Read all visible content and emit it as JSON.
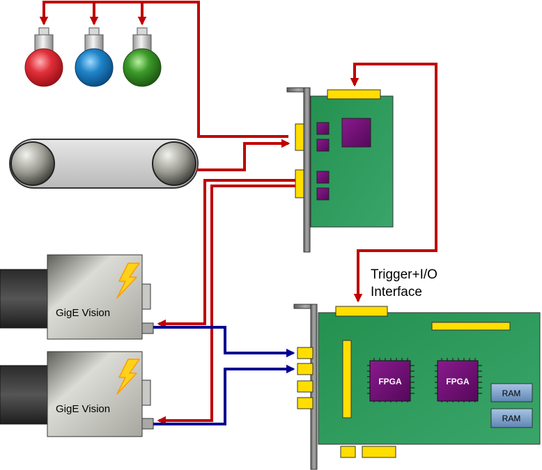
{
  "labels": {
    "trigger_line1": "Trigger+I/O",
    "trigger_line2": "Interface",
    "camera_top": "GigE Vision",
    "camera_bottom": "GigE Vision",
    "fpga_left": "FPGA",
    "fpga_right": "FPGA",
    "ram_top": "RAM",
    "ram_bottom": "RAM"
  },
  "colors": {
    "signal_red": "#c00000",
    "signal_blue": "#000090",
    "board_green": "#2e9a5c",
    "connector_yellow": "#ffde00",
    "chip_purple": "#6a0a6e",
    "bracket_gray": "#7f7f7f",
    "lamp_red": "#e0303a",
    "lamp_blue": "#1f84c8",
    "lamp_green": "#3c9a2a",
    "ram_blue": "#7ea6cf"
  },
  "icons": {
    "lamps": [
      "red-lamp-icon",
      "blue-lamp-icon",
      "green-lamp-icon"
    ],
    "conveyor": "conveyor-belt-icon",
    "cameras": [
      "gige-camera-icon",
      "gige-camera-icon"
    ],
    "lightning": "lightning-bolt-icon"
  }
}
